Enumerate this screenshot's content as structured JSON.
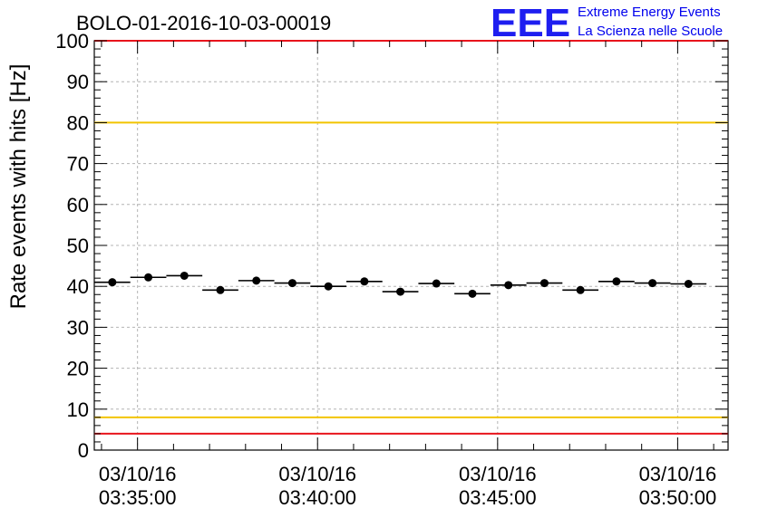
{
  "chart_data": {
    "type": "scatter",
    "title": "BOLO-01-2016-10-03-00019",
    "ylabel": "Rate events with hits [Hz]",
    "xlabel": "",
    "ylim": [
      0,
      100
    ],
    "yticks": [
      "0",
      "10",
      "20",
      "30",
      "40",
      "50",
      "60",
      "70",
      "80",
      "90",
      "100"
    ],
    "xlim_minutes": [
      33.8,
      51.4
    ],
    "xticks": [
      {
        "minute": 35,
        "date": "03/10/16",
        "time": "03:35:00"
      },
      {
        "minute": 40,
        "date": "03/10/16",
        "time": "03:40:00"
      },
      {
        "minute": 45,
        "date": "03/10/16",
        "time": "03:45:00"
      },
      {
        "minute": 50,
        "date": "03/10/16",
        "time": "03:50:00"
      }
    ],
    "bin_width_minutes": 1.0,
    "points": [
      {
        "x": 34.3,
        "y": 41.0
      },
      {
        "x": 35.3,
        "y": 42.2
      },
      {
        "x": 36.3,
        "y": 42.6
      },
      {
        "x": 37.3,
        "y": 39.1
      },
      {
        "x": 38.3,
        "y": 41.4
      },
      {
        "x": 39.3,
        "y": 40.8
      },
      {
        "x": 40.3,
        "y": 40.0
      },
      {
        "x": 41.3,
        "y": 41.2
      },
      {
        "x": 42.3,
        "y": 38.7
      },
      {
        "x": 43.3,
        "y": 40.7
      },
      {
        "x": 44.3,
        "y": 38.2
      },
      {
        "x": 45.3,
        "y": 40.3
      },
      {
        "x": 46.3,
        "y": 40.8
      },
      {
        "x": 47.3,
        "y": 39.1
      },
      {
        "x": 48.3,
        "y": 41.2
      },
      {
        "x": 49.3,
        "y": 40.8
      },
      {
        "x": 50.3,
        "y": 40.6
      }
    ],
    "reference_lines": [
      {
        "y": 100,
        "color": "#e8141c"
      },
      {
        "y": 80,
        "color": "#f2c400"
      },
      {
        "y": 8,
        "color": "#f2c400"
      },
      {
        "y": 4,
        "color": "#e8141c"
      }
    ]
  },
  "logo": {
    "acronym": "EEE",
    "line1": "Extreme Energy Events",
    "line2": "La Scienza nelle Scuole",
    "color": "#1e1ef0"
  },
  "colors": {
    "marker": "#000000",
    "grid": "#b4b4b4"
  }
}
